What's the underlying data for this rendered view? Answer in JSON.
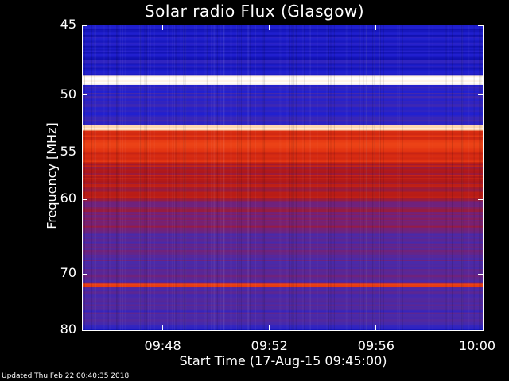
{
  "chart_data": {
    "type": "heatmap",
    "title": "Solar radio Flux (Glasgow)",
    "xlabel": "Start Time (17-Aug-15 09:45:00)",
    "ylabel": "Frequency [MHz]",
    "x_range_minutes": [
      0,
      15
    ],
    "x_ticks": [
      {
        "label": "09:48",
        "minutes": 3
      },
      {
        "label": "09:52",
        "minutes": 7
      },
      {
        "label": "09:56",
        "minutes": 11
      },
      {
        "label": "10:00",
        "minutes": 15
      }
    ],
    "ylim": [
      45,
      80
    ],
    "y_ticks": [
      {
        "label": "45",
        "mhz": 45
      },
      {
        "label": "50",
        "mhz": 50
      },
      {
        "label": "55",
        "mhz": 55
      },
      {
        "label": "60",
        "mhz": 60
      },
      {
        "label": "70",
        "mhz": 70
      },
      {
        "label": "80",
        "mhz": 80
      }
    ],
    "colormap": [
      "#00008b",
      "#2020d0",
      "#4a2aa8",
      "#7a2070",
      "#b01818",
      "#e03010",
      "#ff6020",
      "#ffd0a0",
      "#ffffff"
    ],
    "bands": [
      {
        "from_mhz": 45.0,
        "to_mhz": 48.5,
        "intensity": 0.12
      },
      {
        "from_mhz": 48.5,
        "to_mhz": 49.2,
        "intensity": 1.0
      },
      {
        "from_mhz": 49.2,
        "to_mhz": 52.5,
        "intensity": 0.18
      },
      {
        "from_mhz": 52.5,
        "to_mhz": 53.0,
        "intensity": 0.9
      },
      {
        "from_mhz": 53.0,
        "to_mhz": 56.0,
        "intensity": 0.62
      },
      {
        "from_mhz": 56.0,
        "to_mhz": 60.0,
        "intensity": 0.5
      },
      {
        "from_mhz": 60.0,
        "to_mhz": 64.0,
        "intensity": 0.4
      },
      {
        "from_mhz": 64.0,
        "to_mhz": 71.5,
        "intensity": 0.3
      },
      {
        "from_mhz": 71.5,
        "to_mhz": 72.0,
        "intensity": 0.65
      },
      {
        "from_mhz": 72.0,
        "to_mhz": 79.0,
        "intensity": 0.24
      },
      {
        "from_mhz": 79.0,
        "to_mhz": 80.0,
        "intensity": 0.14
      }
    ]
  },
  "footer": {
    "updated": "Updated Thu Feb 22 00:40:35 2018"
  }
}
